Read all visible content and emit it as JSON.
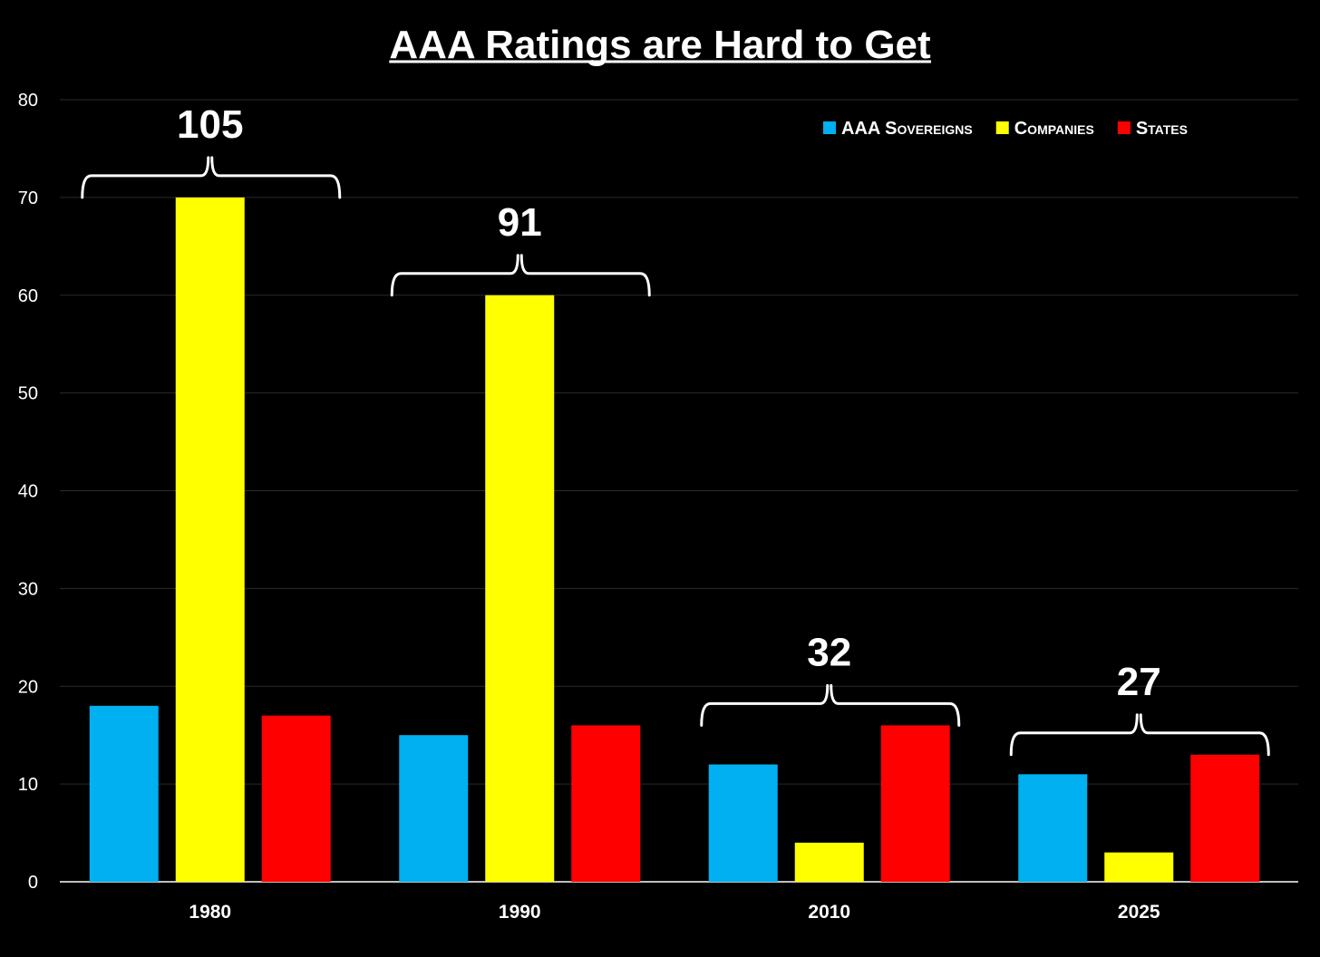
{
  "chart_data": {
    "type": "bar",
    "title": "AAA Ratings are Hard to Get",
    "xlabel": "",
    "ylabel": "",
    "ylim": [
      0,
      80
    ],
    "yticks": [
      0,
      10,
      20,
      30,
      40,
      50,
      60,
      70,
      80
    ],
    "grid": true,
    "legend_position": "top-right",
    "categories": [
      "1980",
      "1990",
      "2010",
      "2025"
    ],
    "series": [
      {
        "name": "AAA Sovereigns",
        "color": "#00b0f0",
        "values": [
          18,
          15,
          12,
          11
        ]
      },
      {
        "name": "Companies",
        "color": "#ffff00",
        "values": [
          70,
          60,
          4,
          3
        ]
      },
      {
        "name": "States",
        "color": "#ff0000",
        "values": [
          17,
          16,
          16,
          13
        ]
      }
    ],
    "annotations": [
      {
        "category": "1980",
        "label": "105"
      },
      {
        "category": "1990",
        "label": "91"
      },
      {
        "category": "2010",
        "label": "32"
      },
      {
        "category": "2025",
        "label": "27"
      }
    ]
  }
}
